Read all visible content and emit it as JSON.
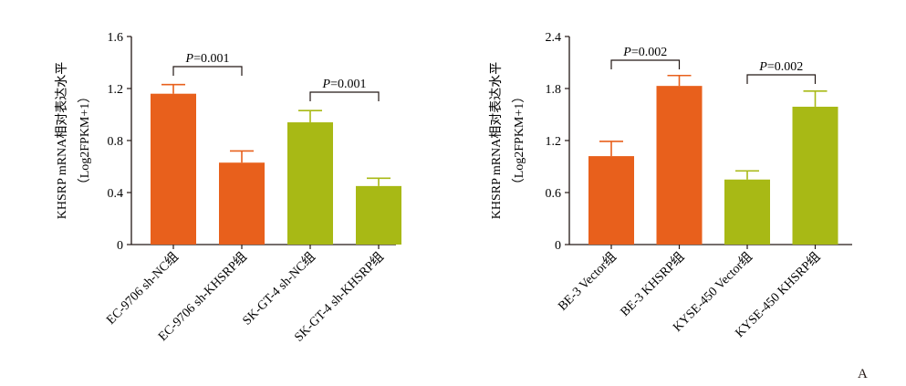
{
  "panel_label": "A",
  "chart_data": [
    {
      "type": "bar",
      "ylabel_line1": "KHSRP mRNA相对表达水平",
      "ylabel_line2": "（Log2FPKM+1）",
      "ylim": [
        0,
        1.6
      ],
      "yticks": [
        "0",
        "0.4",
        "0.8",
        "1.2",
        "1.6"
      ],
      "ytick_values": [
        0,
        0.4,
        0.8,
        1.2,
        1.6
      ],
      "categories": [
        "EC-9706 sh-NC组",
        "EC-9706 sh-KHSRP组",
        "SK-GT-4 sh-NC组",
        "SK-GT-4 sh-KHSRP组"
      ],
      "values": [
        1.16,
        0.63,
        0.94,
        0.45
      ],
      "errors": [
        0.07,
        0.09,
        0.09,
        0.06
      ],
      "colors": [
        "#e8601c",
        "#e8601c",
        "#a8b915",
        "#a8b915"
      ],
      "annotations": [
        {
          "label_italic": "P",
          "label_rest": "=0.001",
          "from": 0,
          "to": 1
        },
        {
          "label_italic": "P",
          "label_rest": "=0.001",
          "from": 2,
          "to": 3
        }
      ],
      "grid": false
    },
    {
      "type": "bar",
      "ylabel_line1": "KHSRP mRNA相对表达水平",
      "ylabel_line2": "（Log2FPKM+1）",
      "ylim": [
        0,
        2.4
      ],
      "yticks": [
        "0",
        "0.6",
        "1.2",
        "1.8",
        "2.4"
      ],
      "ytick_values": [
        0,
        0.6,
        1.2,
        1.8,
        2.4
      ],
      "categories": [
        "BE-3 Vector组",
        "BE-3 KHSRP组",
        "KYSE-450 Vector组",
        "KYSE-450 KHSRP组"
      ],
      "values": [
        1.02,
        1.83,
        0.75,
        1.59
      ],
      "errors": [
        0.17,
        0.12,
        0.1,
        0.18
      ],
      "colors": [
        "#e8601c",
        "#e8601c",
        "#a8b915",
        "#a8b915"
      ],
      "annotations": [
        {
          "label_italic": "P",
          "label_rest": "=0.002",
          "from": 0,
          "to": 1
        },
        {
          "label_italic": "P",
          "label_rest": "=0.002",
          "from": 2,
          "to": 3
        }
      ],
      "grid": false
    }
  ]
}
